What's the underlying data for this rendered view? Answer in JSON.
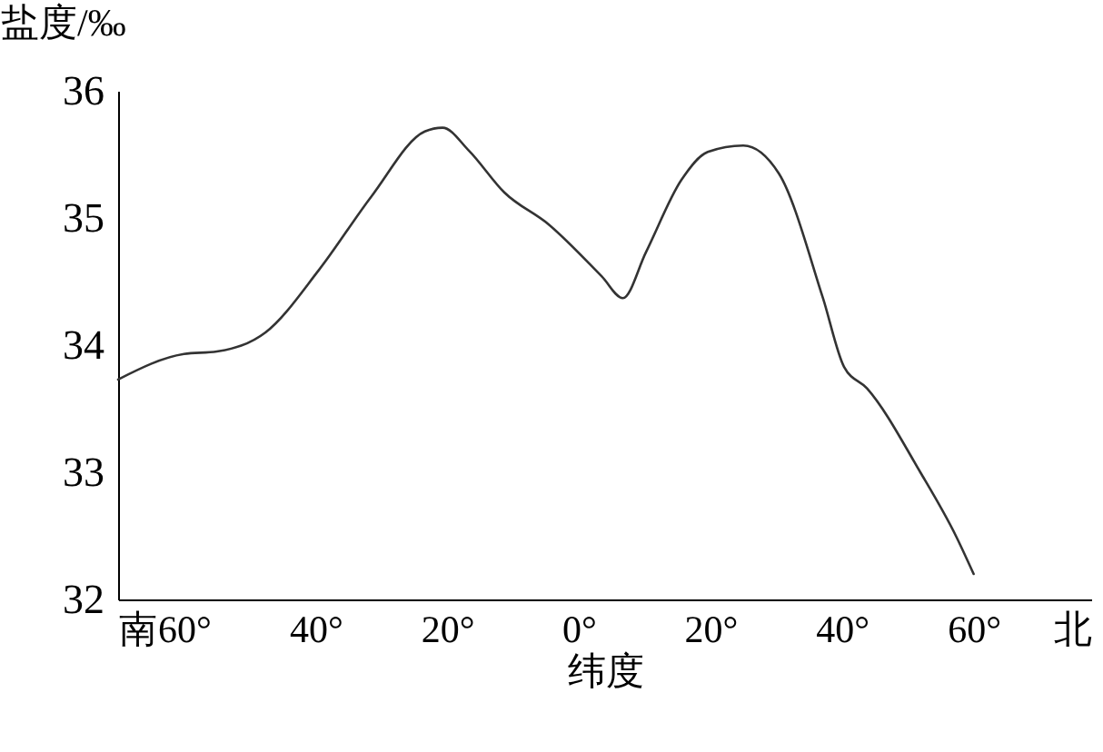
{
  "chart_data": {
    "type": "line",
    "xlabel": "纬度",
    "ylabel": "盐度/‰",
    "x": [
      -70,
      -60,
      -55,
      -47.6,
      -39.5,
      -31.5,
      -23.4,
      -20.7,
      -16.7,
      -11.3,
      -4.6,
      3.5,
      6.7,
      10.2,
      15.6,
      19.6,
      25,
      30.4,
      37.1,
      40.3,
      43.8,
      51.9,
      57.3,
      60
    ],
    "series": [
      {
        "color": "#333333",
        "values": [
          33.73,
          33.93,
          33.95,
          34.1,
          34.59,
          35.17,
          35.68,
          35.71,
          35.53,
          35.2,
          34.95,
          34.54,
          34.37,
          34.73,
          35.3,
          35.52,
          35.57,
          35.35,
          34.37,
          33.83,
          33.66,
          33.0,
          32.5,
          32.2
        ]
      }
    ],
    "xlim": [
      -70,
      78
    ],
    "ylim": [
      32,
      36
    ],
    "xticks": [
      {
        "value": -70,
        "label": "南"
      },
      {
        "value": -60,
        "label": "60°"
      },
      {
        "value": -40,
        "label": "40°"
      },
      {
        "value": -20,
        "label": "20°"
      },
      {
        "value": 0,
        "label": "0°"
      },
      {
        "value": 20,
        "label": "20°"
      },
      {
        "value": 40,
        "label": "40°"
      },
      {
        "value": 60,
        "label": "60°"
      },
      {
        "value": 75,
        "label": "北"
      }
    ],
    "yticks": [
      32,
      33,
      34,
      35,
      36
    ],
    "grid": false,
    "marker": "none",
    "line_style": "solid"
  }
}
